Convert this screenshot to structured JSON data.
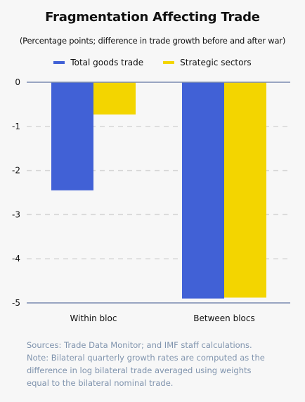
{
  "chart_data": {
    "type": "bar",
    "title": "Fragmentation Affecting Trade",
    "subtitle": "(Percentage points; difference in trade growth before and after war)",
    "categories": [
      "Within bloc",
      "Between blocs"
    ],
    "series": [
      {
        "name": "Total goods trade",
        "values": [
          -2.45,
          -4.9
        ],
        "color": "#4161d6"
      },
      {
        "name": "Strategic sectors",
        "values": [
          -0.73,
          -4.88
        ],
        "color": "#f3d500"
      }
    ],
    "ylim": [
      -5,
      0
    ],
    "yticks": [
      0,
      -1,
      -2,
      -3,
      -4,
      -5
    ],
    "ytick_labels": [
      "0",
      "-1",
      "-2",
      "-3",
      "-4",
      "-5"
    ],
    "xlabel": "",
    "ylabel": "",
    "grid": true,
    "legend_position": "top-center"
  },
  "notes": {
    "sources": "Sources: Trade Data Monitor; and IMF staff calculations.",
    "note_lines": [
      "Note: Bilateral quarterly growth rates are computed as the",
      "difference in log bilateral trade averaged using weights",
      "equal to the bilateral nominal trade."
    ]
  },
  "colors": {
    "axis": "#7a8ab0",
    "grid": "#d6d6d6",
    "background": "#f7f7f7",
    "note_text": "#7f93ad"
  }
}
